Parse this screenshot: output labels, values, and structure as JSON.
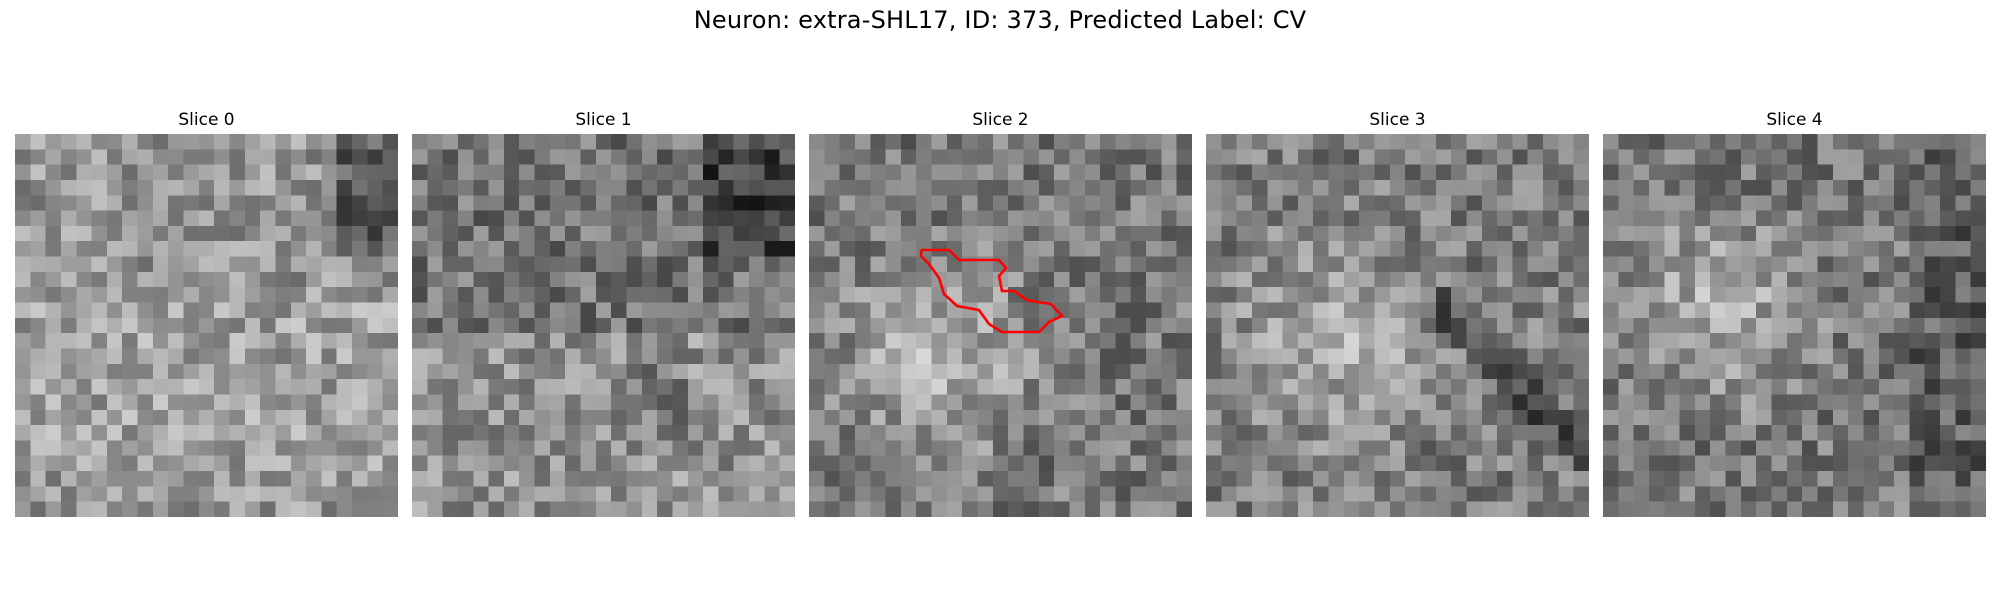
{
  "figure": {
    "title": "Neuron: extra-SHL17, ID: 373, Predicted Label: CV"
  },
  "slices": [
    {
      "title": "Slice 0",
      "has_contour": false
    },
    {
      "title": "Slice 1",
      "has_contour": false
    },
    {
      "title": "Slice 2",
      "has_contour": true
    },
    {
      "title": "Slice 3",
      "has_contour": false
    },
    {
      "title": "Slice 4",
      "has_contour": false
    }
  ],
  "image": {
    "grid": 25,
    "colormap": "gray"
  },
  "contour": {
    "color": "#ff0000"
  }
}
